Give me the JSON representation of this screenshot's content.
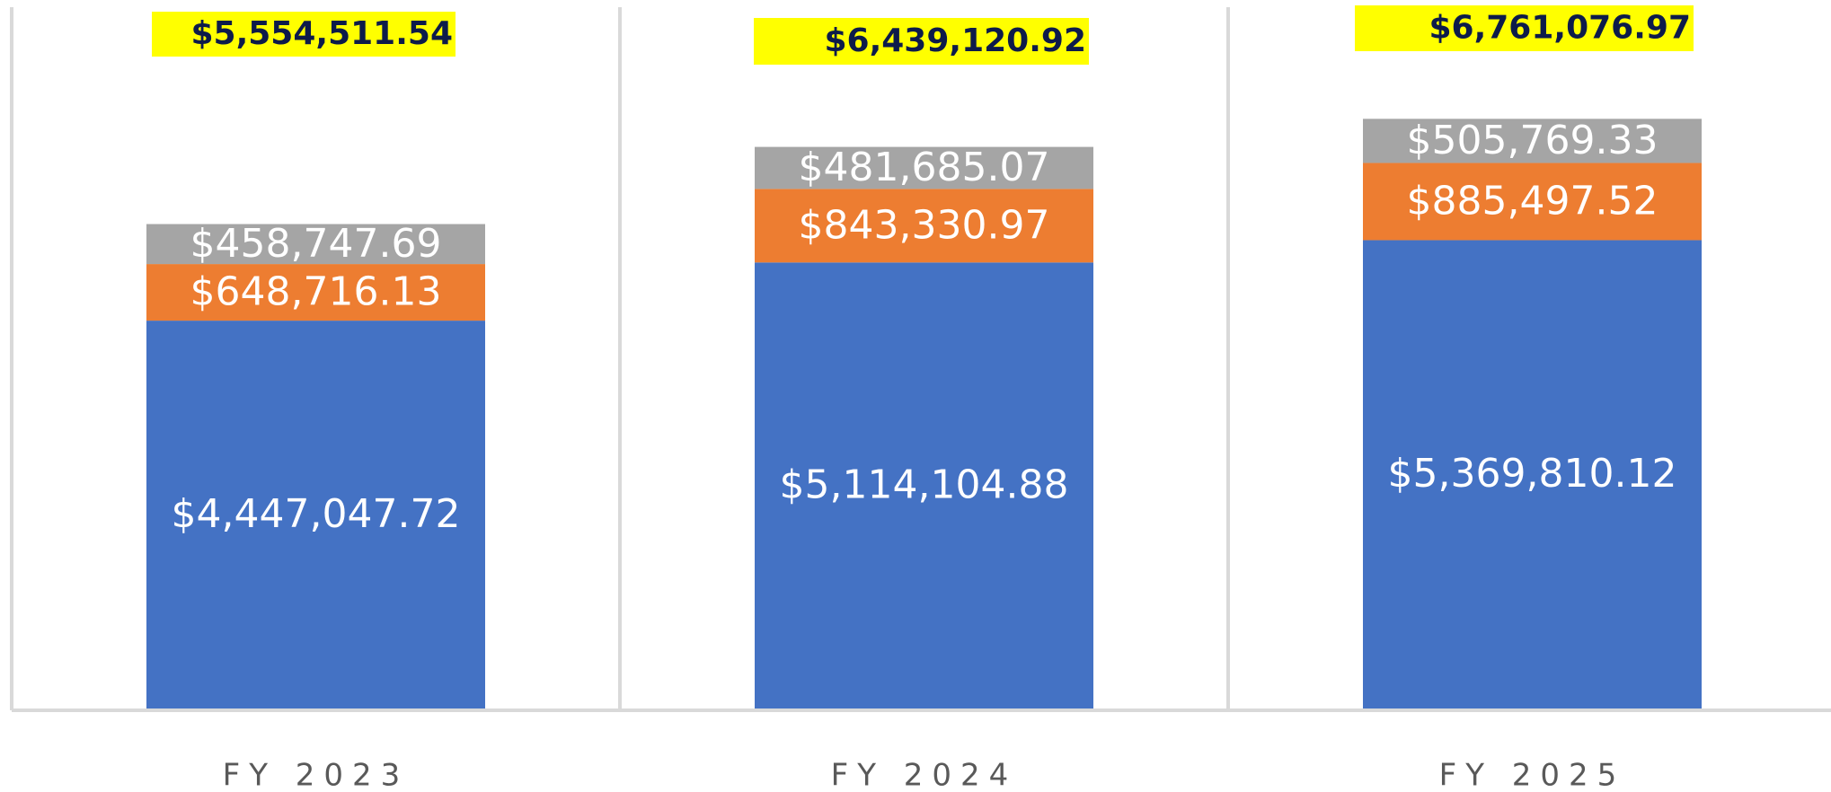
{
  "chart_data": {
    "type": "stacked_bar",
    "categories": [
      "FY 2023",
      "FY 2024",
      "FY 2025"
    ],
    "series": [
      {
        "color": "#4472c4",
        "values": [
          4447047.72,
          5114104.88,
          5369810.12
        ],
        "value_labels": [
          "$4,447,047.72",
          "$5,114,104.88",
          "$5,369,810.12"
        ]
      },
      {
        "color": "#ed7d31",
        "values": [
          648716.13,
          843330.97,
          885497.52
        ],
        "value_labels": [
          "$648,716.13",
          "$843,330.97",
          "$885,497.52"
        ]
      },
      {
        "color": "#a5a5a5",
        "values": [
          458747.69,
          481685.07,
          505769.33
        ],
        "value_labels": [
          "$458,747.69",
          "$481,685.07",
          "$505,769.33"
        ]
      }
    ],
    "totals": [
      5554511.54,
      6439120.92,
      6761076.97
    ],
    "total_labels": [
      "$5,554,511.54",
      "$6,439,120.92",
      "$6,761,076.97"
    ],
    "total_highlight": "#ffff00",
    "ylim": [
      0,
      8000000
    ]
  }
}
